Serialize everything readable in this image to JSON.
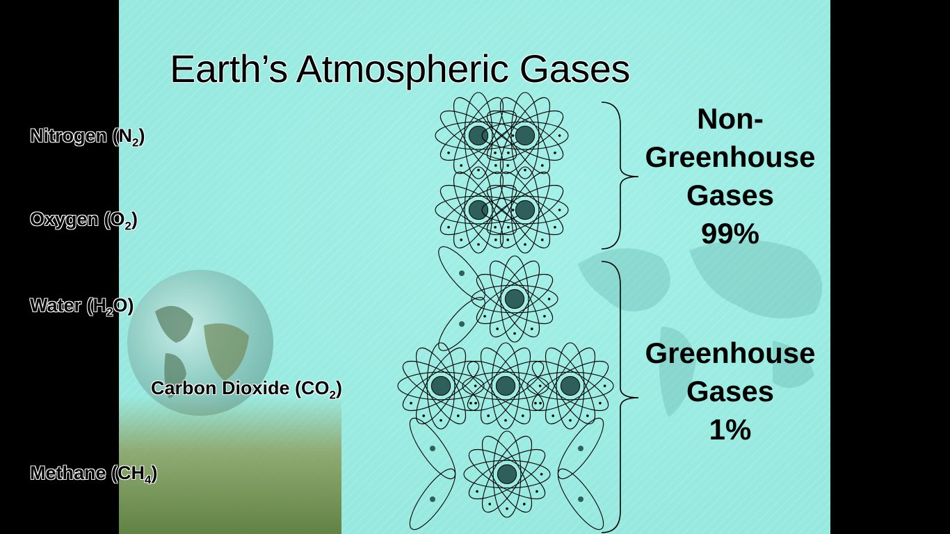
{
  "slide": {
    "title": "Earth’s Atmospheric Gases",
    "gases": [
      {
        "name": "Nitrogen (N",
        "sub": "2",
        "tail": ")"
      },
      {
        "name": "Oxygen (O",
        "sub": "2",
        "tail": ")"
      },
      {
        "name": "Water (H",
        "sub": "2",
        "tail": "O)"
      },
      {
        "name": "Carbon Dioxide (CO",
        "sub": "2",
        "tail": ")"
      },
      {
        "name": "Methane (CH",
        "sub": "4",
        "tail": ")"
      }
    ],
    "non_greenhouse": {
      "line1": "Non-",
      "line2": "Greenhouse",
      "line3": "Gases",
      "percent": "99%"
    },
    "greenhouse": {
      "line1": "Greenhouse",
      "line2": "Gases",
      "percent": "1%"
    },
    "colors": {
      "background": "#97e9df",
      "text": "#000000"
    }
  }
}
